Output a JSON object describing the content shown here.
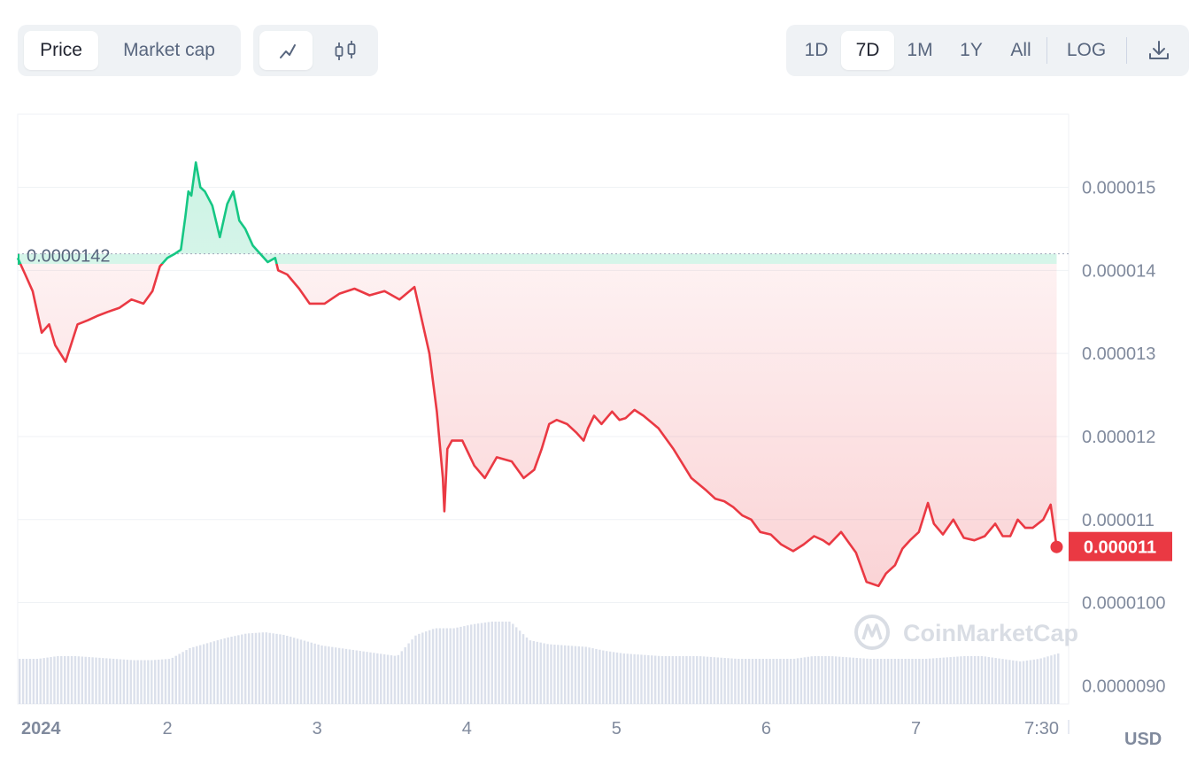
{
  "toolbar": {
    "metric_tabs": [
      {
        "label": "Price",
        "active": true
      },
      {
        "label": "Market cap",
        "active": false
      }
    ],
    "chart_types": [
      {
        "icon": "line-chart-icon",
        "active": true
      },
      {
        "icon": "candlestick-icon",
        "active": false
      }
    ],
    "ranges": [
      {
        "label": "1D",
        "active": false
      },
      {
        "label": "7D",
        "active": true
      },
      {
        "label": "1M",
        "active": false
      },
      {
        "label": "1Y",
        "active": false
      },
      {
        "label": "All",
        "active": false
      }
    ],
    "log_label": "LOG",
    "download_icon": "download-icon"
  },
  "watermark": "CoinMarketCap",
  "currency": "USD",
  "colors": {
    "up": "#16c784",
    "down": "#ea3943",
    "grid": "#eff2f5",
    "volume": "#cfd6e4"
  },
  "chart_data": {
    "type": "line",
    "x_tick_labels": [
      "2024",
      "2",
      "3",
      "4",
      "5",
      "6",
      "7",
      "7:30"
    ],
    "y_tick_labels": [
      "0.000015",
      "0.000014",
      "0.000013",
      "0.000012",
      "0.000011",
      "0.0000100",
      "0.0000090"
    ],
    "y_ticks": [
      1.5e-05,
      1.4e-05,
      1.3e-05,
      1.2e-05,
      1.1e-05,
      1e-05,
      9e-06
    ],
    "ylim": [
      8.78e-06,
      1.588e-05
    ],
    "xlim": [
      0,
      7.02
    ],
    "x_tick_positions": [
      0,
      1,
      2,
      3,
      4,
      5,
      6,
      6.84
    ],
    "reference_price": 1.42e-05,
    "reference_label": "0.0000142",
    "current_price_label": "0.000011",
    "current_price": 1.067e-05,
    "price_series": {
      "x": [
        0,
        0.05,
        0.1,
        0.16,
        0.21,
        0.25,
        0.32,
        0.4,
        0.47,
        0.53,
        0.6,
        0.68,
        0.76,
        0.84,
        0.9,
        0.95,
        1.0,
        1.05,
        1.09,
        1.12,
        1.14,
        1.16,
        1.19,
        1.22,
        1.25,
        1.3,
        1.35,
        1.4,
        1.44,
        1.48,
        1.52,
        1.57,
        1.62,
        1.67,
        1.72,
        1.74,
        1.8,
        1.88,
        1.95,
        2.05,
        2.15,
        2.25,
        2.35,
        2.45,
        2.55,
        2.65,
        2.75,
        2.8,
        2.84,
        2.85,
        2.87,
        2.9,
        2.97,
        3.05,
        3.12,
        3.2,
        3.3,
        3.38,
        3.45,
        3.5,
        3.55,
        3.6,
        3.67,
        3.73,
        3.78,
        3.81,
        3.85,
        3.9,
        3.97,
        4.02,
        4.06,
        4.12,
        4.18,
        4.28,
        4.38,
        4.5,
        4.6,
        4.66,
        4.72,
        4.78,
        4.84,
        4.9,
        4.96,
        5.03,
        5.1,
        5.18,
        5.25,
        5.32,
        5.38,
        5.42,
        5.5,
        5.6,
        5.67,
        5.75,
        5.8,
        5.86,
        5.91,
        5.96,
        6.02,
        6.08,
        6.12,
        6.18,
        6.25,
        6.32,
        6.39,
        6.46,
        6.53,
        6.58,
        6.63,
        6.68,
        6.73,
        6.78,
        6.85,
        6.9,
        6.94
      ],
      "y": [
        1.415e-05,
        1.395e-05,
        1.375e-05,
        1.325e-05,
        1.335e-05,
        1.31e-05,
        1.29e-05,
        1.335e-05,
        1.34e-05,
        1.345e-05,
        1.35e-05,
        1.355e-05,
        1.365e-05,
        1.36e-05,
        1.375e-05,
        1.405e-05,
        1.415e-05,
        1.42e-05,
        1.425e-05,
        1.465e-05,
        1.495e-05,
        1.49e-05,
        1.53e-05,
        1.5e-05,
        1.495e-05,
        1.478e-05,
        1.44e-05,
        1.48e-05,
        1.495e-05,
        1.46e-05,
        1.45e-05,
        1.43e-05,
        1.42e-05,
        1.41e-05,
        1.415e-05,
        1.4e-05,
        1.395e-05,
        1.378e-05,
        1.36e-05,
        1.36e-05,
        1.372e-05,
        1.378e-05,
        1.37e-05,
        1.375e-05,
        1.365e-05,
        1.38e-05,
        1.3e-05,
        1.23e-05,
        1.15e-05,
        1.11e-05,
        1.185e-05,
        1.195e-05,
        1.195e-05,
        1.165e-05,
        1.15e-05,
        1.175e-05,
        1.17e-05,
        1.15e-05,
        1.16e-05,
        1.185e-05,
        1.215e-05,
        1.22e-05,
        1.215e-05,
        1.205e-05,
        1.195e-05,
        1.21e-05,
        1.225e-05,
        1.215e-05,
        1.23e-05,
        1.22e-05,
        1.222e-05,
        1.232e-05,
        1.225e-05,
        1.21e-05,
        1.185e-05,
        1.15e-05,
        1.135e-05,
        1.125e-05,
        1.122e-05,
        1.115e-05,
        1.105e-05,
        1.1e-05,
        1.085e-05,
        1.082e-05,
        1.07e-05,
        1.062e-05,
        1.07e-05,
        1.08e-05,
        1.075e-05,
        1.07e-05,
        1.085e-05,
        1.06e-05,
        1.025e-05,
        1.02e-05,
        1.035e-05,
        1.045e-05,
        1.065e-05,
        1.075e-05,
        1.085e-05,
        1.12e-05,
        1.095e-05,
        1.082e-05,
        1.1e-05,
        1.078e-05,
        1.075e-05,
        1.08e-05,
        1.095e-05,
        1.08e-05,
        1.08e-05,
        1.1e-05,
        1.09e-05,
        1.09e-05,
        1.1e-05,
        1.118e-05,
        1.067e-05
      ]
    },
    "volume_series_relative": [
      0.34,
      0.34,
      0.36,
      0.36,
      0.35,
      0.34,
      0.33,
      0.33,
      0.34,
      0.42,
      0.46,
      0.5,
      0.53,
      0.54,
      0.52,
      0.48,
      0.44,
      0.42,
      0.4,
      0.38,
      0.36,
      0.52,
      0.57,
      0.57,
      0.6,
      0.62,
      0.62,
      0.48,
      0.45,
      0.44,
      0.43,
      0.4,
      0.38,
      0.37,
      0.36,
      0.36,
      0.36,
      0.35,
      0.34,
      0.34,
      0.34,
      0.34,
      0.36,
      0.36,
      0.35,
      0.34,
      0.34,
      0.34,
      0.34,
      0.35,
      0.36,
      0.36,
      0.34,
      0.32,
      0.34,
      0.38
    ]
  }
}
